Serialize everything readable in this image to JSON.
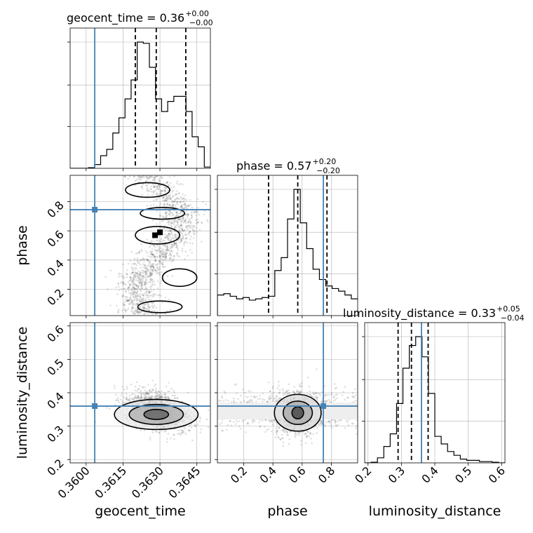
{
  "chart_data": {
    "type": "corner",
    "colors": {
      "truth": "#4682b4",
      "hist": "#000000",
      "grid": "#b0b0b0",
      "scatter": "#000000"
    },
    "parameters": [
      {
        "name": "geocent_time",
        "label": "geocent_time",
        "range": [
          0.35935,
          0.36505
        ],
        "ticks": [
          0.36,
          0.3615,
          0.363,
          0.3645
        ],
        "tick_labels": [
          "0.3600",
          "0.3615",
          "0.3630",
          "0.3645"
        ],
        "truth": 0.36035,
        "quantiles": [
          0.362,
          0.36285,
          0.36405
        ],
        "title_main": "geocent_time = 0.36",
        "title_sup": "+0.00",
        "title_sub": "−0.00"
      },
      {
        "name": "phase",
        "label": "phase",
        "range": [
          0.02,
          0.98
        ],
        "ticks": [
          0.2,
          0.4,
          0.6,
          0.8
        ],
        "tick_labels": [
          "0.2",
          "0.4",
          "0.6",
          "0.8"
        ],
        "truth": 0.745,
        "quantiles": [
          0.37,
          0.57,
          0.77
        ],
        "title_main": "phase = 0.57",
        "title_sup": "+0.20",
        "title_sub": "−0.20"
      },
      {
        "name": "luminosity_distance",
        "label": "luminosity_distance",
        "range": [
          0.19,
          0.61
        ],
        "ticks": [
          0.2,
          0.3,
          0.4,
          0.5,
          0.6
        ],
        "tick_labels": [
          "0.2",
          "0.3",
          "0.4",
          "0.5",
          "0.6"
        ],
        "truth": 0.36,
        "quantiles": [
          0.29,
          0.33,
          0.38
        ],
        "title_main": "luminosity_distance = 0.33",
        "title_sup": "+0.05",
        "title_sub": "−0.04"
      }
    ],
    "histograms": {
      "geocent_time": [
        0,
        0,
        0,
        0.5,
        3,
        10,
        15,
        28,
        40,
        55,
        70,
        100,
        99,
        80,
        55,
        45,
        53,
        57,
        57,
        45,
        25,
        17,
        1
      ],
      "phase": [
        16,
        17,
        15,
        13,
        14,
        12,
        13,
        14,
        15,
        35,
        45,
        75,
        98,
        72,
        52,
        36,
        28,
        23,
        21,
        19,
        16,
        13
      ],
      "luminosity_distance": [
        0,
        0.5,
        4,
        13,
        23,
        47,
        75,
        93,
        100,
        84,
        55,
        21,
        15,
        9,
        6,
        3,
        2,
        2,
        1,
        1,
        0.5,
        0
      ]
    }
  }
}
